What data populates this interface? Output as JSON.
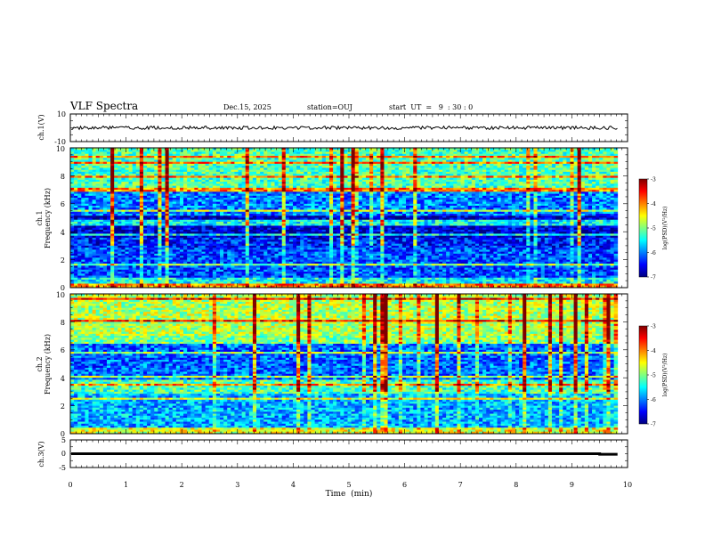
{
  "header": {
    "title": "VLF Spectra",
    "date": "Dec.15, 2025",
    "station": "station=OUJ",
    "start": "start  UT  =   9  : 30 : 0"
  },
  "colors": {
    "background": "#ffffff",
    "axis": "#000000",
    "colormap": [
      "#00007f",
      "#0000ff",
      "#0080ff",
      "#00ffff",
      "#80ff80",
      "#ffff00",
      "#ff8000",
      "#ff0000",
      "#7f0000"
    ]
  },
  "chart_data": {
    "type": "heatmap",
    "xlabel": "Time  (min)",
    "xlim": [
      0,
      10
    ],
    "x_ticks": [
      "0",
      "1",
      "2",
      "3",
      "4",
      "5",
      "6",
      "7",
      "8",
      "9",
      "10"
    ],
    "data_end_min": 9.82,
    "panels": [
      {
        "id": "ch1-waveform",
        "type": "line",
        "ylabel": "ch.1(V)",
        "ylim": [
          -10,
          10
        ],
        "y_ticks": [
          "10",
          "-10"
        ],
        "baseline_v": 0,
        "noise_amplitude_v": 1.2
      },
      {
        "id": "ch1-spectrogram",
        "type": "heatmap",
        "ylabel_line1": "ch.1",
        "ylabel_line2": "Frequency  (kHz)",
        "ylim": [
          0,
          10
        ],
        "y_ticks": [
          "0",
          "2",
          "4",
          "6",
          "8",
          "10"
        ],
        "colorbar": {
          "label": "log(PSD)(V²/Hz)",
          "range": [
            -7,
            -3
          ],
          "ticks": [
            "-3",
            "-4",
            "-5",
            "-6",
            "-7"
          ]
        },
        "bands": [
          {
            "fmin": 0,
            "fmax": 0.3,
            "log_psd": -4.0
          },
          {
            "fmin": 0.3,
            "fmax": 0.7,
            "log_psd": -5.5
          },
          {
            "fmin": 0.7,
            "fmax": 2.8,
            "log_psd": -6.2
          },
          {
            "fmin": 2.8,
            "fmax": 3.6,
            "log_psd": -6.4
          },
          {
            "fmin": 3.6,
            "fmax": 5.2,
            "log_psd": -6.7
          },
          {
            "fmin": 5.2,
            "fmax": 6.8,
            "log_psd": -6.0
          },
          {
            "fmin": 6.8,
            "fmax": 10,
            "log_psd": -5.2
          }
        ]
      },
      {
        "id": "ch2-spectrogram",
        "type": "heatmap",
        "ylabel_line1": "ch.2",
        "ylabel_line2": "Frequency  (kHz)",
        "ylim": [
          0,
          10
        ],
        "y_ticks": [
          "0",
          "2",
          "4",
          "6",
          "8",
          "10"
        ],
        "colorbar": {
          "label": "log(PSD)(V²/Hz)",
          "range": [
            -7,
            -3
          ],
          "ticks": [
            "-3",
            "-4",
            "-5",
            "-6",
            "-7"
          ]
        },
        "bands": [
          {
            "fmin": 0,
            "fmax": 0.4,
            "log_psd": -4.6
          },
          {
            "fmin": 0.4,
            "fmax": 2.8,
            "log_psd": -5.8
          },
          {
            "fmin": 2.8,
            "fmax": 3.8,
            "log_psd": -5.2
          },
          {
            "fmin": 3.8,
            "fmax": 6.4,
            "log_psd": -6.1
          },
          {
            "fmin": 6.4,
            "fmax": 7.0,
            "log_psd": -5.0
          },
          {
            "fmin": 7.0,
            "fmax": 10,
            "log_psd": -4.8
          }
        ]
      },
      {
        "id": "ch3-waveform",
        "type": "line",
        "ylabel": "ch.3(V)",
        "ylim": [
          -5,
          5
        ],
        "y_ticks": [
          "5",
          "0",
          "-5"
        ],
        "value_v": 0,
        "step_at_min": 9.5,
        "value_after_step_v": -0.2
      }
    ]
  }
}
